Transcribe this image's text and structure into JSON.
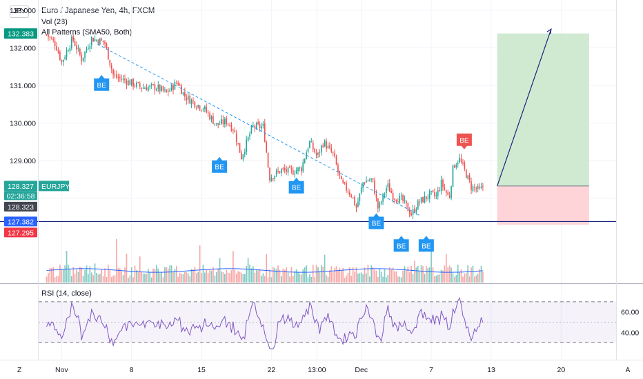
{
  "header": {
    "symbol_button": "JPY",
    "title": "Euro / Japanese Yen, 4h, FXCM",
    "indicators": [
      "Vol (28)",
      "All Patterns (SMA50, Both)"
    ],
    "rsi_label": "RSI (14, close)"
  },
  "colors": {
    "up": "#26a69a",
    "down": "#ef5350",
    "volume_line": "#2962ff",
    "trendline": "#2196f3",
    "target_zone": "#c8e6c9",
    "stop_zone": "#ffcdd2",
    "support_line": "#1a237e",
    "rsi_line": "#7e57c2",
    "pattern_badge": "#2196f3",
    "pattern_badge_bear": "#ef5350"
  },
  "chart_data": {
    "type": "candlestick",
    "symbol": "EURJPY",
    "timeframe": "4h",
    "y_axis_ticks": [
      133.0,
      132.0,
      131.0,
      130.0,
      129.0,
      128.0
    ],
    "y_axis_tick_labels": [
      "133.000",
      "132.000",
      "131.000",
      "130.000",
      "129.000"
    ],
    "ylim": [
      126.95,
      133.2
    ],
    "x_axis_ticks": [
      {
        "label": "Nov",
        "day": 1
      },
      {
        "label": "8",
        "day": 8
      },
      {
        "label": "15",
        "day": 15
      },
      {
        "label": "22",
        "day": 22
      },
      {
        "label": "13:00",
        "day": 26.55
      },
      {
        "label": "Dec",
        "day": 31
      },
      {
        "label": "7",
        "day": 38
      },
      {
        "label": "13",
        "day": 44
      },
      {
        "label": "20",
        "day": 51
      }
    ],
    "xlim_days": [
      -1.3,
      56.5
    ],
    "last_day": 43.2,
    "price_anchors": [
      [
        -0.5,
        132.35
      ],
      [
        0.4,
        132.1
      ],
      [
        1.0,
        131.62
      ],
      [
        2.1,
        132.25
      ],
      [
        3.0,
        131.7
      ],
      [
        4.0,
        132.25
      ],
      [
        5.3,
        132.15
      ],
      [
        6.2,
        131.25
      ],
      [
        7.5,
        131.12
      ],
      [
        9.0,
        130.95
      ],
      [
        10.5,
        130.95
      ],
      [
        11.5,
        130.8
      ],
      [
        12.6,
        131.1
      ],
      [
        13.3,
        130.72
      ],
      [
        14.5,
        130.5
      ],
      [
        15.2,
        130.4
      ],
      [
        16.5,
        129.95
      ],
      [
        17.5,
        130.05
      ],
      [
        18.2,
        129.85
      ],
      [
        19.0,
        129.1
      ],
      [
        20.1,
        129.9
      ],
      [
        21.2,
        129.9
      ],
      [
        21.8,
        128.55
      ],
      [
        23.0,
        128.75
      ],
      [
        24.0,
        128.7
      ],
      [
        25.0,
        128.8
      ],
      [
        25.8,
        129.5
      ],
      [
        26.6,
        129.1
      ],
      [
        27.2,
        129.5
      ],
      [
        28.2,
        129.15
      ],
      [
        29.0,
        128.4
      ],
      [
        30.0,
        128.1
      ],
      [
        30.5,
        127.75
      ],
      [
        31.2,
        128.45
      ],
      [
        32.1,
        128.5
      ],
      [
        32.7,
        127.7
      ],
      [
        33.6,
        128.35
      ],
      [
        34.2,
        128.05
      ],
      [
        35.1,
        127.95
      ],
      [
        36.0,
        127.58
      ],
      [
        36.8,
        127.9
      ],
      [
        37.9,
        128.1
      ],
      [
        38.5,
        128.05
      ],
      [
        39.0,
        128.4
      ],
      [
        39.8,
        128.0
      ],
      [
        40.2,
        128.85
      ],
      [
        40.8,
        129.05
      ],
      [
        41.4,
        128.7
      ],
      [
        42.0,
        128.3
      ],
      [
        42.9,
        128.2
      ],
      [
        43.2,
        128.33
      ]
    ],
    "volume_ylim": [
      0,
      4
    ],
    "volume_ma_level": 1.0,
    "rsi_levels": {
      "upper": 60,
      "lower": 40,
      "ylim": [
        20,
        80
      ]
    },
    "rsi_axis_tick_labels": [
      "60.00",
      "40.00"
    ],
    "price_labels": {
      "top": "132.383",
      "current": "128.327",
      "countdown": "02:36:58",
      "symbol": "EURJPY",
      "bid": "128.323",
      "support": "127.382",
      "stop": "127.295"
    },
    "levels": {
      "top": 132.383,
      "current": 128.327,
      "bid": 128.323,
      "support": 127.382,
      "stop": 127.295
    },
    "trendline": {
      "from": [
        4.6,
        132.1
      ],
      "to": [
        36.8,
        127.55
      ]
    },
    "position": {
      "day_from": 44.6,
      "day_to": 53.8,
      "entry": 128.327,
      "target": 132.383,
      "stop": 127.295
    },
    "target_arrow": {
      "from": [
        44.6,
        128.327
      ],
      "to": [
        50.0,
        132.5
      ]
    },
    "pattern_badges": [
      {
        "label": "BE",
        "day": 5.0,
        "price": 131.28,
        "dir": "up"
      },
      {
        "label": "BE",
        "day": 16.8,
        "price": 129.1,
        "dir": "up"
      },
      {
        "label": "BE",
        "day": 24.5,
        "price": 128.55,
        "dir": "up"
      },
      {
        "label": "BE",
        "day": 32.5,
        "price": 127.6,
        "dir": "up"
      },
      {
        "label": "BE",
        "day": 35.0,
        "price": 127.0,
        "dir": "up"
      },
      {
        "label": "BE",
        "day": 37.5,
        "price": 127.0,
        "dir": "up"
      },
      {
        "label": "BE",
        "day": 41.3,
        "price": 129.3,
        "dir": "down"
      }
    ]
  }
}
